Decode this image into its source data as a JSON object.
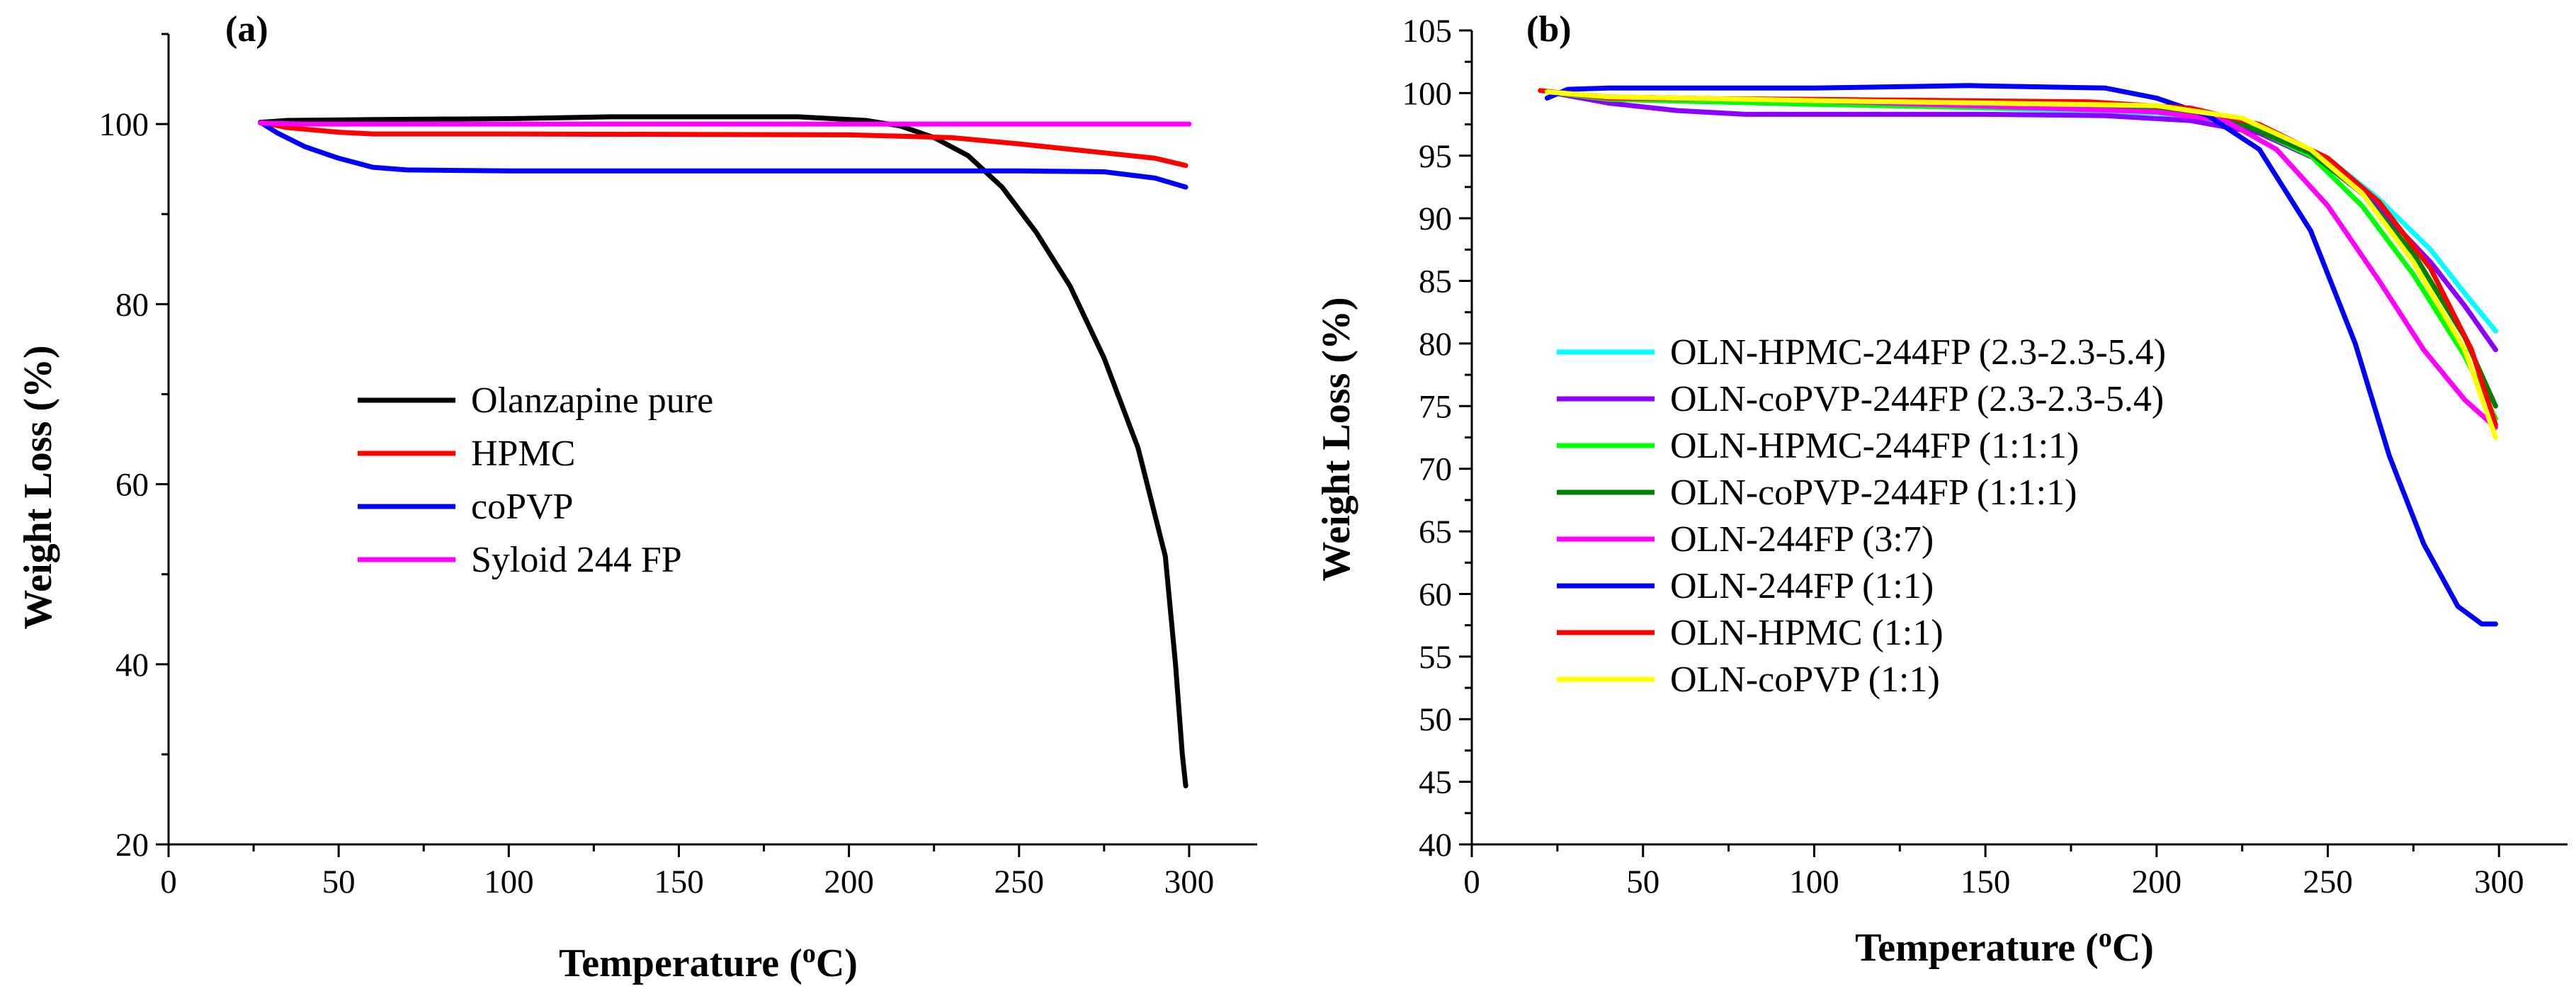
{
  "chart_data": [
    {
      "panel": "(a)",
      "type": "line",
      "xlabel": "Temperature (",
      "xlabel_sup": "o",
      "xlabel_end": "C)",
      "ylabel": "Weight Loss (%)",
      "xlim": [
        0,
        320
      ],
      "ylim": [
        20,
        110
      ],
      "xticks": [
        0,
        50,
        100,
        150,
        200,
        250,
        300
      ],
      "yticks": [
        20,
        40,
        60,
        80,
        100
      ],
      "legend_position": "center",
      "series": [
        {
          "name": "Olanzapine pure",
          "color": "#000000",
          "points": [
            [
              27,
              100.2
            ],
            [
              35,
              100.4
            ],
            [
              60,
              100.5
            ],
            [
              100,
              100.6
            ],
            [
              130,
              100.8
            ],
            [
              185,
              100.8
            ],
            [
              205,
              100.4
            ],
            [
              215,
              99.8
            ],
            [
              225,
              98.5
            ],
            [
              235,
              96.5
            ],
            [
              245,
              93
            ],
            [
              255,
              88
            ],
            [
              265,
              82
            ],
            [
              275,
              74
            ],
            [
              285,
              64
            ],
            [
              293,
              52
            ],
            [
              296,
              40
            ],
            [
              298,
              30
            ],
            [
              299,
              26.5
            ]
          ]
        },
        {
          "name": "HPMC",
          "color": "#ff0000",
          "points": [
            [
              27,
              100.2
            ],
            [
              35,
              99.6
            ],
            [
              50,
              99.1
            ],
            [
              60,
              98.9
            ],
            [
              100,
              98.9
            ],
            [
              200,
              98.8
            ],
            [
              230,
              98.5
            ],
            [
              250,
              97.8
            ],
            [
              270,
              97
            ],
            [
              290,
              96.2
            ],
            [
              299,
              95.4
            ]
          ]
        },
        {
          "name": "coPVP",
          "color": "#0000ff",
          "points": [
            [
              27,
              100.2
            ],
            [
              32,
              99
            ],
            [
              40,
              97.5
            ],
            [
              50,
              96.2
            ],
            [
              60,
              95.2
            ],
            [
              70,
              94.9
            ],
            [
              100,
              94.8
            ],
            [
              200,
              94.8
            ],
            [
              250,
              94.8
            ],
            [
              275,
              94.7
            ],
            [
              290,
              94
            ],
            [
              299,
              93
            ]
          ]
        },
        {
          "name": "Syloid 244 FP",
          "color": "#ff00ff",
          "points": [
            [
              27,
              100.1
            ],
            [
              40,
              100
            ],
            [
              100,
              100
            ],
            [
              200,
              100
            ],
            [
              300,
              100
            ]
          ]
        }
      ]
    },
    {
      "panel": "(b)",
      "type": "line",
      "xlabel": "Temperature (",
      "xlabel_sup": "o",
      "xlabel_end": "C)",
      "ylabel": "Weight Loss (%)",
      "xlim": [
        0,
        320
      ],
      "ylim": [
        40,
        105
      ],
      "xticks": [
        0,
        50,
        100,
        150,
        200,
        250,
        300
      ],
      "yticks": [
        40,
        45,
        50,
        55,
        60,
        65,
        70,
        75,
        80,
        85,
        90,
        95,
        100,
        105
      ],
      "legend_position": "center-left",
      "series": [
        {
          "name": "OLN-HPMC-244FP (2.3-2.3-5.4)",
          "color": "#00ffff",
          "points": [
            [
              22,
              100.1
            ],
            [
              40,
              99.6
            ],
            [
              100,
              99.2
            ],
            [
              200,
              98.4
            ],
            [
              230,
              97.2
            ],
            [
              250,
              94.8
            ],
            [
              265,
              91.5
            ],
            [
              280,
              87.5
            ],
            [
              290,
              84
            ],
            [
              299,
              81
            ]
          ]
        },
        {
          "name": "OLN-coPVP-244FP (2.3-2.3-5.4)",
          "color": "#8b00ff",
          "points": [
            [
              22,
              100.1
            ],
            [
              40,
              99.2
            ],
            [
              60,
              98.6
            ],
            [
              80,
              98.3
            ],
            [
              150,
              98.3
            ],
            [
              185,
              98.2
            ],
            [
              210,
              97.8
            ],
            [
              230,
              96.8
            ],
            [
              250,
              94.3
            ],
            [
              265,
              90.8
            ],
            [
              280,
              86.5
            ],
            [
              290,
              83
            ],
            [
              299,
              79.5
            ]
          ]
        },
        {
          "name": "OLN-HPMC-244FP (1:1:1)",
          "color": "#00ff00",
          "points": [
            [
              22,
              100.1
            ],
            [
              40,
              99.5
            ],
            [
              100,
              99.1
            ],
            [
              200,
              98.6
            ],
            [
              225,
              97.6
            ],
            [
              245,
              95
            ],
            [
              260,
              91
            ],
            [
              275,
              85.5
            ],
            [
              290,
              79
            ],
            [
              299,
              74
            ]
          ]
        },
        {
          "name": "OLN-coPVP-244FP (1:1:1)",
          "color": "#008000",
          "points": [
            [
              22,
              100.1
            ],
            [
              40,
              99.7
            ],
            [
              100,
              99.4
            ],
            [
              200,
              98.8
            ],
            [
              225,
              97.5
            ],
            [
              245,
              95.2
            ],
            [
              260,
              92
            ],
            [
              275,
              87.2
            ],
            [
              290,
              80.5
            ],
            [
              299,
              75
            ]
          ]
        },
        {
          "name": "OLN-244FP (3:7)",
          "color": "#ff00ff",
          "points": [
            [
              22,
              100.1
            ],
            [
              40,
              99.7
            ],
            [
              100,
              99.4
            ],
            [
              200,
              98.5
            ],
            [
              220,
              97.8
            ],
            [
              235,
              95.5
            ],
            [
              250,
              91
            ],
            [
              265,
              85
            ],
            [
              278,
              79.5
            ],
            [
              290,
              75.5
            ],
            [
              299,
              73.3
            ]
          ]
        },
        {
          "name": "OLN-244FP (1:1)",
          "color": "#0000ff",
          "points": [
            [
              22,
              99.6
            ],
            [
              28,
              100.3
            ],
            [
              40,
              100.4
            ],
            [
              100,
              100.4
            ],
            [
              145,
              100.6
            ],
            [
              185,
              100.4
            ],
            [
              200,
              99.6
            ],
            [
              215,
              98.2
            ],
            [
              230,
              95.5
            ],
            [
              245,
              89
            ],
            [
              258,
              80
            ],
            [
              268,
              71
            ],
            [
              278,
              64
            ],
            [
              288,
              59
            ],
            [
              295,
              57.6
            ],
            [
              299,
              57.6
            ]
          ]
        },
        {
          "name": "OLN-HPMC (1:1)",
          "color": "#ff0000",
          "points": [
            [
              20,
              100.2
            ],
            [
              40,
              99.6
            ],
            [
              100,
              99.5
            ],
            [
              180,
              99.3
            ],
            [
              210,
              98.8
            ],
            [
              230,
              97.5
            ],
            [
              250,
              94.8
            ],
            [
              265,
              91.3
            ],
            [
              280,
              86
            ],
            [
              292,
              79.5
            ],
            [
              299,
              73.5
            ]
          ]
        },
        {
          "name": "OLN-coPVP (1:1)",
          "color": "#ffff00",
          "points": [
            [
              22,
              100.1
            ],
            [
              40,
              99.7
            ],
            [
              100,
              99.4
            ],
            [
              200,
              99
            ],
            [
              225,
              98
            ],
            [
              245,
              95.5
            ],
            [
              260,
              92
            ],
            [
              275,
              86.5
            ],
            [
              290,
              79.5
            ],
            [
              299,
              72.5
            ]
          ]
        }
      ]
    }
  ]
}
